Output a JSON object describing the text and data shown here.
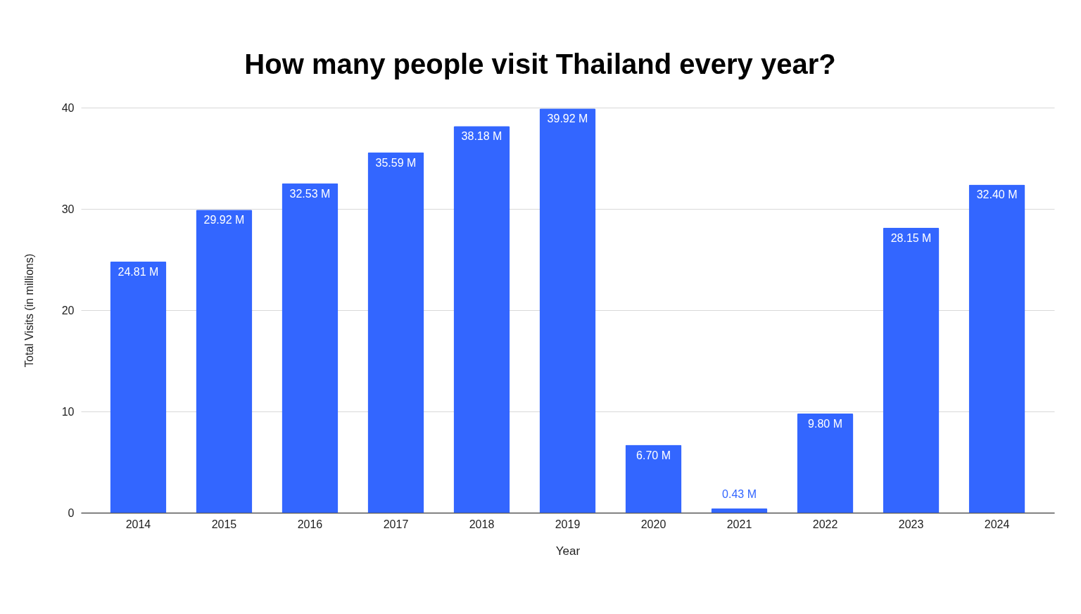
{
  "chart_data": {
    "type": "bar",
    "title": "How many people visit Thailand every year?",
    "xlabel": "Year",
    "ylabel": "Total Visits (in millions)",
    "categories": [
      "2014",
      "2015",
      "2016",
      "2017",
      "2018",
      "2019",
      "2020",
      "2021",
      "2022",
      "2023",
      "2024"
    ],
    "values": [
      24.81,
      29.92,
      32.53,
      35.59,
      38.18,
      39.92,
      6.7,
      0.43,
      9.8,
      28.15,
      32.4
    ],
    "value_labels": [
      "24.81 M",
      "29.92 M",
      "32.53 M",
      "35.59 M",
      "38.18 M",
      "39.92 M",
      "6.70 M",
      "0.43 M",
      "9.80 M",
      "28.15 M",
      "32.40 M"
    ],
    "color": "#3366ff",
    "ylim": [
      0,
      40
    ],
    "yticks": [
      0,
      10,
      20,
      30,
      40
    ],
    "grid": "y"
  }
}
